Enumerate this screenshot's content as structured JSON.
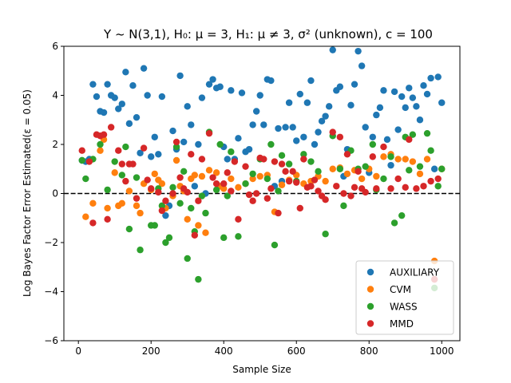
{
  "chart_data": {
    "type": "scatter",
    "title": "Y ~ N(3,1), H₀: μ = 3, H₁: μ ≠ 3, σ² (unknown), c = 100",
    "xlabel": "Sample Size",
    "ylabel": "Log Bayes Factor Error Estimated(ε = 0.05)",
    "xlim": [
      -40,
      1050
    ],
    "ylim": [
      -6,
      6
    ],
    "xticks": [
      0,
      200,
      400,
      600,
      800,
      1000
    ],
    "yticks": [
      -6,
      -4,
      -2,
      0,
      2,
      4,
      6
    ],
    "reference_line": {
      "y": 0,
      "style": "dashed",
      "color": "#000000"
    },
    "grid": false,
    "legend_position": "lower-right",
    "series": [
      {
        "name": "AUXILIARY",
        "color": "#1f77b4",
        "points": [
          [
            10,
            1.35
          ],
          [
            20,
            1.3
          ],
          [
            30,
            1.4
          ],
          [
            40,
            4.45
          ],
          [
            50,
            3.95
          ],
          [
            60,
            3.35
          ],
          [
            70,
            3.3
          ],
          [
            80,
            4.45
          ],
          [
            90,
            4.0
          ],
          [
            100,
            3.9
          ],
          [
            110,
            3.45
          ],
          [
            120,
            3.65
          ],
          [
            130,
            4.95
          ],
          [
            140,
            2.85
          ],
          [
            150,
            4.4
          ],
          [
            160,
            3.1
          ],
          [
            170,
            1.65
          ],
          [
            180,
            5.1
          ],
          [
            190,
            4.0
          ],
          [
            200,
            1.5
          ],
          [
            210,
            2.3
          ],
          [
            220,
            1.6
          ],
          [
            230,
            3.95
          ],
          [
            240,
            -0.9
          ],
          [
            250,
            -0.5
          ],
          [
            260,
            2.55
          ],
          [
            270,
            1.8
          ],
          [
            280,
            4.8
          ],
          [
            290,
            2.1
          ],
          [
            300,
            3.55
          ],
          [
            310,
            2.8
          ],
          [
            320,
            0.3
          ],
          [
            330,
            2.0
          ],
          [
            340,
            3.9
          ],
          [
            350,
            0.0
          ],
          [
            360,
            4.45
          ],
          [
            370,
            4.65
          ],
          [
            380,
            4.3
          ],
          [
            390,
            4.35
          ],
          [
            400,
            1.9
          ],
          [
            410,
            1.4
          ],
          [
            420,
            4.2
          ],
          [
            430,
            1.4
          ],
          [
            440,
            2.25
          ],
          [
            450,
            4.1
          ],
          [
            460,
            1.7
          ],
          [
            470,
            1.8
          ],
          [
            480,
            2.8
          ],
          [
            490,
            3.35
          ],
          [
            500,
            4.0
          ],
          [
            510,
            2.8
          ],
          [
            520,
            4.65
          ],
          [
            530,
            4.6
          ],
          [
            540,
            0.3
          ],
          [
            550,
            2.65
          ],
          [
            560,
            0.5
          ],
          [
            570,
            2.7
          ],
          [
            580,
            3.7
          ],
          [
            590,
            2.7
          ],
          [
            600,
            2.15
          ],
          [
            610,
            4.05
          ],
          [
            620,
            2.3
          ],
          [
            630,
            3.7
          ],
          [
            640,
            4.6
          ],
          [
            650,
            2.0
          ],
          [
            660,
            2.5
          ],
          [
            670,
            2.95
          ],
          [
            680,
            3.15
          ],
          [
            690,
            3.55
          ],
          [
            700,
            5.85
          ],
          [
            710,
            4.2
          ],
          [
            720,
            4.35
          ],
          [
            730,
            0.7
          ],
          [
            740,
            1.8
          ],
          [
            750,
            3.6
          ],
          [
            760,
            4.45
          ],
          [
            770,
            5.8
          ],
          [
            780,
            5.2
          ],
          [
            790,
            2.7
          ],
          [
            800,
            0.85
          ],
          [
            810,
            2.3
          ],
          [
            820,
            3.2
          ],
          [
            830,
            3.5
          ],
          [
            840,
            4.2
          ],
          [
            850,
            2.2
          ],
          [
            860,
            1.15
          ],
          [
            870,
            4.15
          ],
          [
            880,
            2.6
          ],
          [
            890,
            3.95
          ],
          [
            900,
            3.5
          ],
          [
            910,
            4.3
          ],
          [
            920,
            3.9
          ],
          [
            930,
            3.55
          ],
          [
            940,
            3.0
          ],
          [
            950,
            4.4
          ],
          [
            960,
            4.05
          ],
          [
            970,
            4.7
          ],
          [
            980,
            1.0
          ],
          [
            990,
            4.75
          ],
          [
            1000,
            3.7
          ]
        ]
      },
      {
        "name": "CVM",
        "color": "#ff7f0e",
        "points": [
          [
            20,
            -0.95
          ],
          [
            40,
            -0.4
          ],
          [
            60,
            1.75
          ],
          [
            70,
            2.2
          ],
          [
            80,
            -0.6
          ],
          [
            100,
            0.85
          ],
          [
            110,
            -0.5
          ],
          [
            120,
            -0.4
          ],
          [
            140,
            0.1
          ],
          [
            160,
            -0.5
          ],
          [
            170,
            -0.8
          ],
          [
            180,
            0.4
          ],
          [
            200,
            0.15
          ],
          [
            210,
            0.8
          ],
          [
            220,
            0.55
          ],
          [
            230,
            0.4
          ],
          [
            240,
            -0.6
          ],
          [
            260,
            -0.1
          ],
          [
            270,
            1.35
          ],
          [
            280,
            0.3
          ],
          [
            290,
            0.1
          ],
          [
            300,
            -1.05
          ],
          [
            310,
            0.6
          ],
          [
            320,
            0.75
          ],
          [
            330,
            -1.3
          ],
          [
            340,
            0.7
          ],
          [
            350,
            -1.6
          ],
          [
            360,
            0.95
          ],
          [
            380,
            0.85
          ],
          [
            390,
            0.3
          ],
          [
            400,
            0.2
          ],
          [
            420,
            0.6
          ],
          [
            440,
            0.25
          ],
          [
            460,
            0.4
          ],
          [
            480,
            0.6
          ],
          [
            500,
            0.7
          ],
          [
            520,
            0.75
          ],
          [
            540,
            -0.75
          ],
          [
            560,
            0.35
          ],
          [
            580,
            0.55
          ],
          [
            600,
            0.75
          ],
          [
            620,
            0.4
          ],
          [
            640,
            0.5
          ],
          [
            660,
            0.7
          ],
          [
            680,
            0.5
          ],
          [
            700,
            1.0
          ],
          [
            720,
            1.05
          ],
          [
            740,
            0.8
          ],
          [
            760,
            0.95
          ],
          [
            780,
            0.6
          ],
          [
            800,
            1.0
          ],
          [
            820,
            0.7
          ],
          [
            840,
            1.5
          ],
          [
            860,
            1.6
          ],
          [
            880,
            1.4
          ],
          [
            900,
            1.4
          ],
          [
            920,
            1.3
          ],
          [
            940,
            0.8
          ],
          [
            960,
            1.4
          ],
          [
            980,
            -2.75
          ],
          [
            1000,
            1.0
          ]
        ]
      },
      {
        "name": "WASS",
        "color": "#2ca02c",
        "points": [
          [
            10,
            1.35
          ],
          [
            20,
            0.6
          ],
          [
            40,
            1.4
          ],
          [
            60,
            2.0
          ],
          [
            80,
            0.15
          ],
          [
            100,
            1.3
          ],
          [
            120,
            0.75
          ],
          [
            130,
            1.9
          ],
          [
            140,
            -1.45
          ],
          [
            160,
            0.65
          ],
          [
            170,
            -2.3
          ],
          [
            200,
            -1.3
          ],
          [
            210,
            -1.3
          ],
          [
            220,
            0.2
          ],
          [
            230,
            -0.5
          ],
          [
            240,
            -2.0
          ],
          [
            250,
            -1.8
          ],
          [
            260,
            0.25
          ],
          [
            270,
            1.9
          ],
          [
            280,
            -0.4
          ],
          [
            290,
            0.9
          ],
          [
            300,
            -2.65
          ],
          [
            310,
            -0.6
          ],
          [
            320,
            -1.55
          ],
          [
            330,
            -3.5
          ],
          [
            340,
            -0.1
          ],
          [
            350,
            -0.8
          ],
          [
            360,
            2.5
          ],
          [
            380,
            0.15
          ],
          [
            390,
            2.0
          ],
          [
            400,
            -1.8
          ],
          [
            410,
            -0.1
          ],
          [
            420,
            1.7
          ],
          [
            440,
            -1.75
          ],
          [
            460,
            0.4
          ],
          [
            480,
            0.8
          ],
          [
            500,
            1.4
          ],
          [
            520,
            0.6
          ],
          [
            530,
            2.0
          ],
          [
            540,
            -2.1
          ],
          [
            550,
            0.1
          ],
          [
            560,
            1.55
          ],
          [
            580,
            1.2
          ],
          [
            600,
            0.5
          ],
          [
            620,
            1.6
          ],
          [
            640,
            1.3
          ],
          [
            660,
            0.9
          ],
          [
            680,
            -1.65
          ],
          [
            700,
            2.35
          ],
          [
            720,
            1.0
          ],
          [
            730,
            -0.5
          ],
          [
            750,
            1.75
          ],
          [
            770,
            1.0
          ],
          [
            790,
            1.1
          ],
          [
            810,
            2.0
          ],
          [
            820,
            0.15
          ],
          [
            840,
            0.6
          ],
          [
            860,
            1.5
          ],
          [
            870,
            -1.2
          ],
          [
            890,
            -0.9
          ],
          [
            900,
            2.3
          ],
          [
            910,
            0.95
          ],
          [
            920,
            2.4
          ],
          [
            940,
            1.1
          ],
          [
            960,
            2.45
          ],
          [
            970,
            1.75
          ],
          [
            980,
            -3.85
          ],
          [
            990,
            0.3
          ],
          [
            1000,
            1.0
          ]
        ]
      },
      {
        "name": "MMD",
        "color": "#d62728",
        "points": [
          [
            10,
            1.75
          ],
          [
            30,
            1.3
          ],
          [
            40,
            -1.2
          ],
          [
            50,
            2.4
          ],
          [
            60,
            2.35
          ],
          [
            70,
            2.4
          ],
          [
            80,
            -1.05
          ],
          [
            90,
            2.7
          ],
          [
            110,
            1.75
          ],
          [
            120,
            1.2
          ],
          [
            130,
            0.5
          ],
          [
            140,
            1.2
          ],
          [
            150,
            1.2
          ],
          [
            160,
            -0.2
          ],
          [
            180,
            1.85
          ],
          [
            190,
            0.55
          ],
          [
            200,
            0.2
          ],
          [
            220,
            0.05
          ],
          [
            230,
            -0.7
          ],
          [
            240,
            -0.3
          ],
          [
            260,
            0.0
          ],
          [
            270,
            2.1
          ],
          [
            280,
            0.65
          ],
          [
            290,
            0.2
          ],
          [
            300,
            0.05
          ],
          [
            310,
            1.6
          ],
          [
            320,
            -1.7
          ],
          [
            330,
            -0.3
          ],
          [
            340,
            1.4
          ],
          [
            360,
            2.45
          ],
          [
            370,
            0.65
          ],
          [
            380,
            0.4
          ],
          [
            400,
            0.4
          ],
          [
            410,
            0.85
          ],
          [
            420,
            0.1
          ],
          [
            430,
            1.3
          ],
          [
            440,
            -1.05
          ],
          [
            460,
            1.1
          ],
          [
            470,
            -0.05
          ],
          [
            480,
            -0.3
          ],
          [
            490,
            0.0
          ],
          [
            500,
            1.45
          ],
          [
            510,
            1.4
          ],
          [
            520,
            -0.2
          ],
          [
            530,
            0.2
          ],
          [
            540,
            1.3
          ],
          [
            550,
            -0.8
          ],
          [
            560,
            1.2
          ],
          [
            570,
            0.9
          ],
          [
            580,
            0.5
          ],
          [
            590,
            0.9
          ],
          [
            600,
            0.45
          ],
          [
            610,
            -0.6
          ],
          [
            620,
            1.4
          ],
          [
            630,
            0.25
          ],
          [
            640,
            0.3
          ],
          [
            650,
            0.55
          ],
          [
            660,
            0.1
          ],
          [
            670,
            -0.1
          ],
          [
            680,
            -0.25
          ],
          [
            700,
            2.5
          ],
          [
            710,
            0.3
          ],
          [
            720,
            2.3
          ],
          [
            730,
            0.0
          ],
          [
            740,
            1.6
          ],
          [
            750,
            -0.1
          ],
          [
            760,
            0.25
          ],
          [
            770,
            0.9
          ],
          [
            780,
            0.2
          ],
          [
            790,
            0.05
          ],
          [
            810,
            1.5
          ],
          [
            820,
            0.2
          ],
          [
            840,
            1.9
          ],
          [
            860,
            0.2
          ],
          [
            880,
            0.6
          ],
          [
            900,
            0.25
          ],
          [
            910,
            2.2
          ],
          [
            930,
            0.2
          ],
          [
            950,
            0.3
          ],
          [
            970,
            0.5
          ],
          [
            980,
            -3.5
          ],
          [
            990,
            0.6
          ]
        ]
      }
    ]
  }
}
